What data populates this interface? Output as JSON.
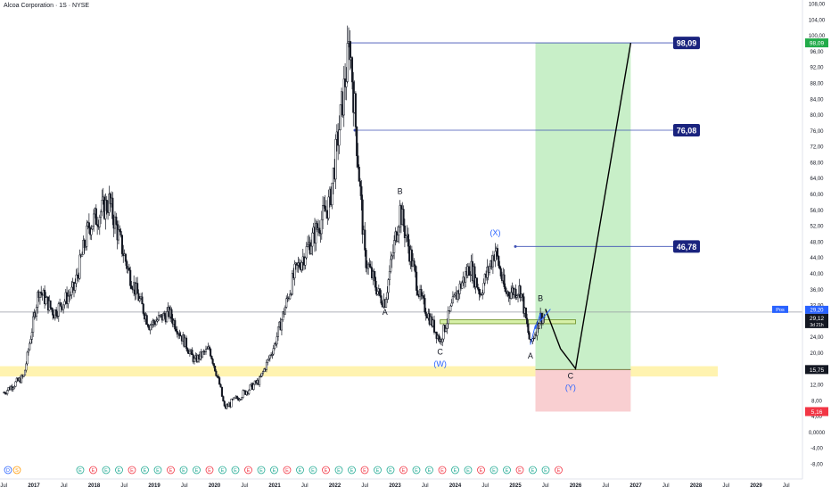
{
  "header": {
    "title": "Alcoa Corporation · 1S · NYSE"
  },
  "chart_data": {
    "type": "candlestick",
    "title": "Alcoa Corporation · 1S · NYSE",
    "ylim": [
      -10,
      108
    ],
    "y_ticks": [
      "108,00",
      "104,00",
      "100,00",
      "96,00",
      "92,00",
      "88,00",
      "84,00",
      "80,00",
      "76,00",
      "72,00",
      "68,00",
      "64,00",
      "60,00",
      "56,00",
      "52,00",
      "48,00",
      "44,00",
      "40,00",
      "36,00",
      "32,00",
      "28,00",
      "24,00",
      "20,00",
      "16,00",
      "12,00",
      "8,00",
      "4,00",
      "0,0000",
      "-4,00",
      "-8,00"
    ],
    "x_ticks": [
      "Jul",
      "2017",
      "Jul",
      "2018",
      "Jul",
      "2019",
      "Jul",
      "2020",
      "Jul",
      "2021",
      "Jul",
      "2022",
      "Jul",
      "2023",
      "Jul",
      "2024",
      "Jul",
      "2025",
      "Jul",
      "2026",
      "Jul",
      "2027",
      "Jul",
      "2028",
      "Jul",
      "2029",
      "Jul"
    ],
    "x_range": [
      "2016-07",
      "2029-07"
    ],
    "price_path": [
      [
        "2016-07",
        10
      ],
      [
        "2016-11",
        14
      ],
      [
        "2017-02",
        36
      ],
      [
        "2017-05",
        30
      ],
      [
        "2017-09",
        36
      ],
      [
        "2017-12",
        52
      ],
      [
        "2018-04",
        58
      ],
      [
        "2018-08",
        40
      ],
      [
        "2018-12",
        27
      ],
      [
        "2019-04",
        30
      ],
      [
        "2019-09",
        18
      ],
      [
        "2019-12",
        21
      ],
      [
        "2020-02",
        12
      ],
      [
        "2020-03",
        6
      ],
      [
        "2020-06",
        9
      ],
      [
        "2020-10",
        13
      ],
      [
        "2021-01",
        22
      ],
      [
        "2021-05",
        40
      ],
      [
        "2021-09",
        50
      ],
      [
        "2021-12",
        58
      ],
      [
        "2022-04",
        98
      ],
      [
        "2022-07",
        44
      ],
      [
        "2022-10",
        34
      ],
      [
        "2022-11",
        33
      ],
      [
        "2023-02",
        56
      ],
      [
        "2023-06",
        34
      ],
      [
        "2023-10",
        23
      ],
      [
        "2024-01",
        34
      ],
      [
        "2024-04",
        42
      ],
      [
        "2024-06",
        35
      ],
      [
        "2024-09",
        46
      ],
      [
        "2024-11",
        35
      ],
      [
        "2025-02",
        36
      ],
      [
        "2025-04",
        22
      ],
      [
        "2025-06",
        29
      ],
      [
        "2025-07",
        29
      ]
    ],
    "current_price": "29,12",
    "price_label_top": "29,20",
    "countdown": "3d 21h",
    "left_tag": "Pos",
    "horizontal_levels": [
      {
        "label": "98,09",
        "value": 98.09,
        "from": "2022-04"
      },
      {
        "label": "76,08",
        "value": 76.08,
        "from": "2022-05"
      },
      {
        "label": "46,78",
        "value": 46.78,
        "from": "2025-01"
      }
    ],
    "support_zone": {
      "from": 14.0,
      "to": 16.6,
      "label": "15,75"
    },
    "position_box": {
      "from": "2025-05",
      "to": "2026-12",
      "entry": 15.75,
      "target": 98.09,
      "stop": 5.16
    },
    "target_price_tag": "98,09",
    "stop_price_tag": "5,16",
    "projection_path": [
      [
        "2025-07",
        31
      ],
      [
        "2025-10",
        21
      ],
      [
        "2026-01",
        16
      ],
      [
        "2026-12",
        98.09
      ]
    ],
    "wave_labels": [
      {
        "text": "B",
        "x": "2023-02",
        "y": 60
      },
      {
        "text": "A",
        "x": "2022-11",
        "y": 29.5
      },
      {
        "text": "C",
        "x": "2023-10",
        "y": 19.5
      },
      {
        "text": "(W)",
        "x": "2023-10",
        "y": 16.5
      },
      {
        "text": "(X)",
        "x": "2024-09",
        "y": 49.5
      },
      {
        "text": "A",
        "x": "2025-04",
        "y": 18.5
      },
      {
        "text": "B",
        "x": "2025-06",
        "y": 33
      },
      {
        "text": "C",
        "x": "2025-12",
        "y": 13.5
      },
      {
        "text": "(Y)",
        "x": "2025-12",
        "y": 10.5
      }
    ],
    "event_markers": [
      "D",
      "S",
      "E",
      "E",
      "E",
      "E",
      "E",
      "E",
      "E",
      "E",
      "E",
      "E",
      "E",
      "E",
      "E",
      "E",
      "E",
      "E",
      "E",
      "E",
      "E",
      "E",
      "E",
      "E",
      "E",
      "E",
      "E",
      "E",
      "E",
      "E",
      "E",
      "E",
      "E",
      "E",
      "E",
      "E",
      "E",
      "E",
      "E",
      "E"
    ],
    "colors": {
      "up": "#131722",
      "level": "#3f51b5",
      "level_tag": "#1a237e",
      "target_fill": "#c8efc8",
      "stop_fill": "#f9cfd1",
      "zone": "#fff3b0",
      "current": "#131722",
      "target_tag": "#22ab4a",
      "stop_tag": "#f23645",
      "wave_blue": "#2962ff"
    }
  }
}
